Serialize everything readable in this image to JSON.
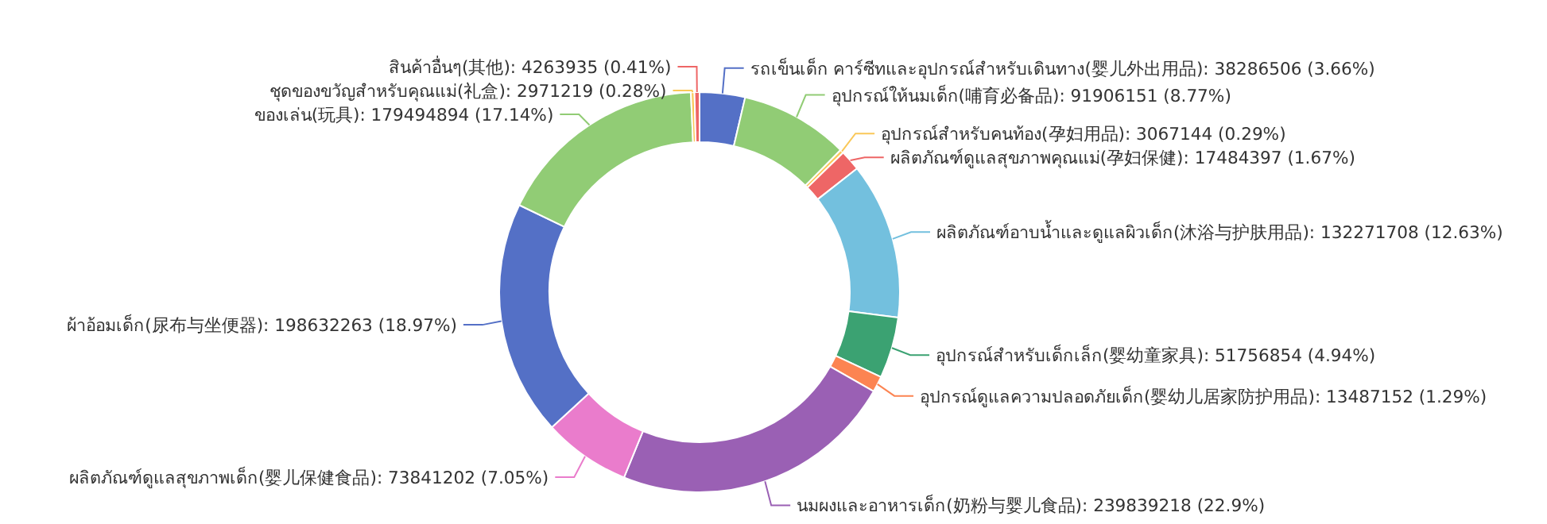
{
  "chart_data": {
    "type": "donut",
    "categories": [
      "รถเข็นเด็ก คาร์ซีทและอุปกรณ์สำหรับเดินทาง(婴儿外出用品)",
      "อุปกรณ์ให้นมเด็ก(哺育必备品)",
      "อุปกรณ์สำหรับคนท้อง(孕妇用品)",
      "ผลิตภัณฑ์ดูแลสุขภาพคุณแม่(孕妇保健)",
      "ผลิตภัณฑ์อาบน้ำและดูแลผิวเด็ก(沐浴与护肤用品)",
      "อุปกรณ์สำหรับเด็กเล็ก(婴幼童家具)",
      "อุปกรณ์ดูแลความปลอดภัยเด็ก(婴幼儿居家防护用品)",
      "นมผงและอาหารเด็ก(奶粉与婴儿食品)",
      "ผลิตภัณฑ์ดูแลสุขภาพเด็ก(婴儿保健食品)",
      "ผ้าอ้อมเด็ก(尿布与坐便器)",
      "ของเล่น(玩具)",
      "ชุดของขวัญสำหรับคุณแม่(礼盒)",
      "สินค้าอื่นๆ(其他)"
    ],
    "values": [
      38286506,
      91906151,
      3067144,
      17484397,
      132271708,
      51756854,
      13487152,
      239839218,
      73841202,
      198632263,
      179494894,
      2971219,
      4263935
    ],
    "value_labels": [
      "38286506 (3.66%)",
      "91906151 (8.77%)",
      "3067144 (0.29%)",
      "17484397 (1.67%)",
      "132271708 (12.63%)",
      "51756854 (4.94%)",
      "13487152 (1.29%)",
      "239839218 (22.9%)",
      "73841202 (7.05%)",
      "198632263 (18.97%)",
      "179494894 (17.14%)",
      "2971219 (0.28%)",
      "4263935 (0.41%)"
    ],
    "colors": [
      "#5470c6",
      "#91cc75",
      "#fac858",
      "#ee6666",
      "#73c0de",
      "#3ba272",
      "#fc8452",
      "#9a60b4",
      "#ea7ccc",
      "#5470c6",
      "#91cc75",
      "#fac858",
      "#ee6666"
    ]
  }
}
